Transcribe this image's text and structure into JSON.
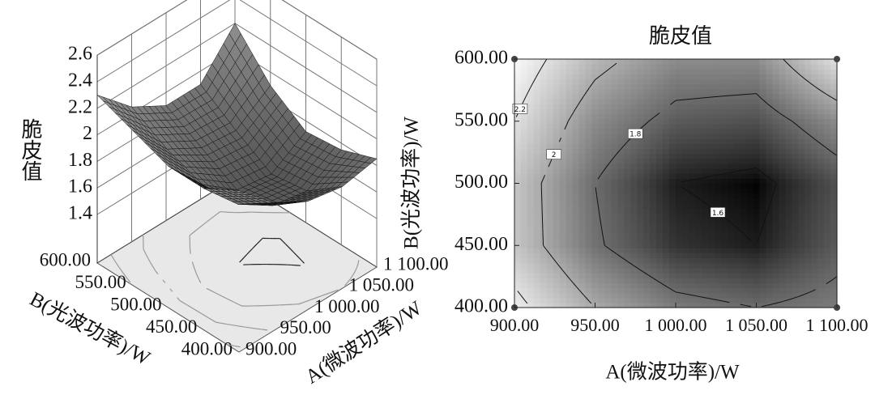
{
  "chart_data": [
    {
      "type": "surface",
      "zlabel": "脆皮值",
      "xlabel": "A(微波功率)/W",
      "ylabel": "B(光波功率)/W",
      "x": [
        900,
        950,
        1000,
        1050,
        1100
      ],
      "y": [
        400,
        450,
        500,
        550,
        600
      ],
      "z": [
        [
          2.25,
          2.0,
          1.85,
          1.8,
          1.85
        ],
        [
          2.1,
          1.82,
          1.65,
          1.6,
          1.75
        ],
        [
          2.1,
          1.8,
          1.6,
          1.56,
          1.72
        ],
        [
          2.2,
          1.9,
          1.75,
          1.72,
          1.9
        ],
        [
          2.3,
          2.05,
          1.9,
          1.9,
          2.2
        ]
      ],
      "xlim": [
        900,
        1100
      ],
      "ylim": [
        400,
        600
      ],
      "zlim": [
        1.4,
        2.6
      ],
      "xticks": [
        {
          "value": 900,
          "label": "900.00"
        },
        {
          "value": 950,
          "label": "950.00"
        },
        {
          "value": 1000,
          "label": "1 000.00"
        },
        {
          "value": 1050,
          "label": "1 050.00"
        },
        {
          "value": 1100,
          "label": "1 100.00"
        }
      ],
      "yticks": [
        {
          "value": 400,
          "label": "400.00"
        },
        {
          "value": 450,
          "label": "450.00"
        },
        {
          "value": 500,
          "label": "500.00"
        },
        {
          "value": 550,
          "label": "550.00"
        },
        {
          "value": 600,
          "label": "600.00"
        }
      ],
      "zticks": [
        1.4,
        1.6,
        1.8,
        2,
        2.2,
        2.4,
        2.6
      ],
      "contour_levels": [
        1.6,
        1.8,
        2,
        2.2
      ]
    },
    {
      "type": "contour",
      "title": "脆皮值",
      "xlabel": "A(微波功率)/W",
      "ylabel": "B(光波功率)/W",
      "x": [
        900,
        950,
        1000,
        1050,
        1100
      ],
      "y": [
        400,
        450,
        500,
        550,
        600
      ],
      "z": [
        [
          2.25,
          2.0,
          1.85,
          1.8,
          1.85
        ],
        [
          2.1,
          1.82,
          1.65,
          1.6,
          1.75
        ],
        [
          2.1,
          1.8,
          1.6,
          1.56,
          1.72
        ],
        [
          2.2,
          1.9,
          1.75,
          1.72,
          1.9
        ],
        [
          2.3,
          2.05,
          1.9,
          1.9,
          2.2
        ]
      ],
      "xlim": [
        900,
        1100
      ],
      "ylim": [
        400,
        600
      ],
      "xticks": [
        {
          "value": 900,
          "label": "900.00"
        },
        {
          "value": 950,
          "label": "950.00"
        },
        {
          "value": 1000,
          "label": "1 000.00"
        },
        {
          "value": 1050,
          "label": "1 050.00"
        },
        {
          "value": 1100,
          "label": "1 100.00"
        }
      ],
      "yticks": [
        {
          "value": 400,
          "label": "400.00"
        },
        {
          "value": 450,
          "label": "450.00"
        },
        {
          "value": 500,
          "label": "500.00"
        },
        {
          "value": 550,
          "label": "550.00"
        },
        {
          "value": 600,
          "label": "600.00"
        }
      ],
      "contour_levels": [
        1.6,
        1.8,
        2,
        2.2
      ]
    }
  ]
}
